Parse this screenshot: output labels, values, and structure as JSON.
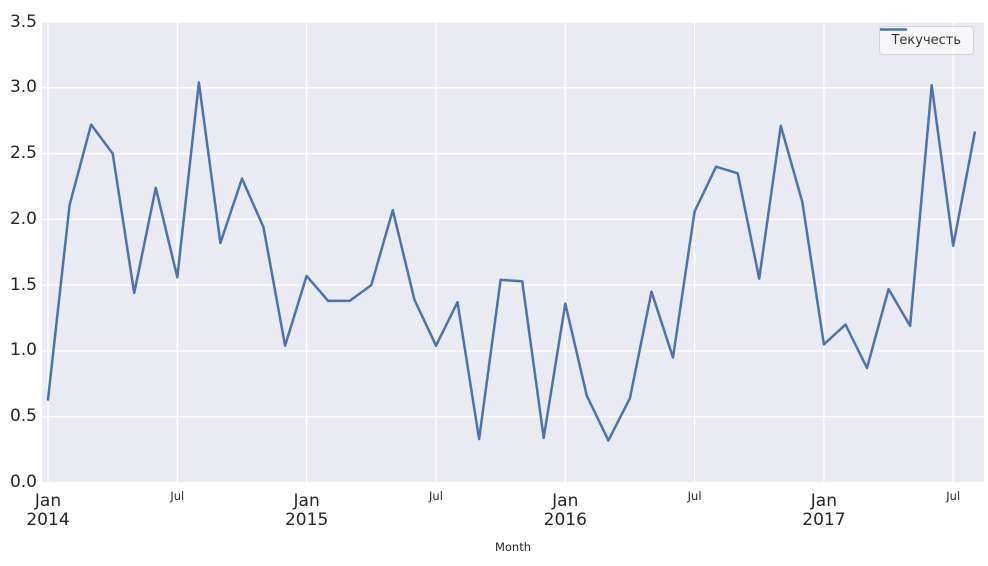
{
  "figure": {
    "xlabel": "Month",
    "legend_label": "Текучесть"
  },
  "chart_data": {
    "type": "line",
    "title": "",
    "xlabel": "Month",
    "ylabel": "",
    "ylim": [
      0.0,
      3.5
    ],
    "grid": true,
    "legend_position": "upper right",
    "plot_background": "#eaeaf2",
    "grid_color": "#ffffff",
    "text_color": "#262626",
    "yticks": [
      "0.0",
      "0.5",
      "1.0",
      "1.5",
      "2.0",
      "2.5",
      "3.0",
      "3.5"
    ],
    "x_major_ticks": {
      "positions": [
        0,
        12,
        24,
        36
      ],
      "labels": [
        [
          "Jan",
          "2014"
        ],
        [
          "Jan",
          "2015"
        ],
        [
          "Jan",
          "2016"
        ],
        [
          "Jan",
          "2017"
        ]
      ]
    },
    "x_minor_ticks": {
      "positions": [
        6,
        18,
        30,
        42
      ],
      "label": "Jul"
    },
    "x": [
      "2014-01",
      "2014-02",
      "2014-03",
      "2014-04",
      "2014-05",
      "2014-06",
      "2014-07",
      "2014-08",
      "2014-09",
      "2014-10",
      "2014-11",
      "2014-12",
      "2015-01",
      "2015-02",
      "2015-03",
      "2015-04",
      "2015-05",
      "2015-06",
      "2015-07",
      "2015-08",
      "2015-09",
      "2015-10",
      "2015-11",
      "2015-12",
      "2016-01",
      "2016-02",
      "2016-03",
      "2016-04",
      "2016-05",
      "2016-06",
      "2016-07",
      "2016-08",
      "2016-09",
      "2016-10",
      "2016-11",
      "2016-12",
      "2017-01",
      "2017-02",
      "2017-03",
      "2017-04",
      "2017-05",
      "2017-06",
      "2017-07",
      "2017-08"
    ],
    "series": [
      {
        "name": "Текучесть",
        "color": "#4c72b0",
        "values": [
          0.63,
          2.11,
          2.72,
          2.5,
          1.44,
          2.24,
          1.56,
          3.04,
          1.82,
          2.31,
          1.94,
          1.04,
          1.57,
          1.38,
          1.38,
          1.5,
          2.07,
          1.39,
          1.04,
          1.37,
          0.33,
          1.54,
          1.53,
          0.34,
          1.36,
          0.66,
          0.32,
          0.64,
          1.45,
          0.95,
          2.06,
          2.4,
          2.35,
          1.55,
          2.71,
          2.13,
          1.05,
          1.2,
          0.87,
          1.47,
          1.19,
          3.02,
          1.8,
          2.66
        ]
      }
    ]
  }
}
